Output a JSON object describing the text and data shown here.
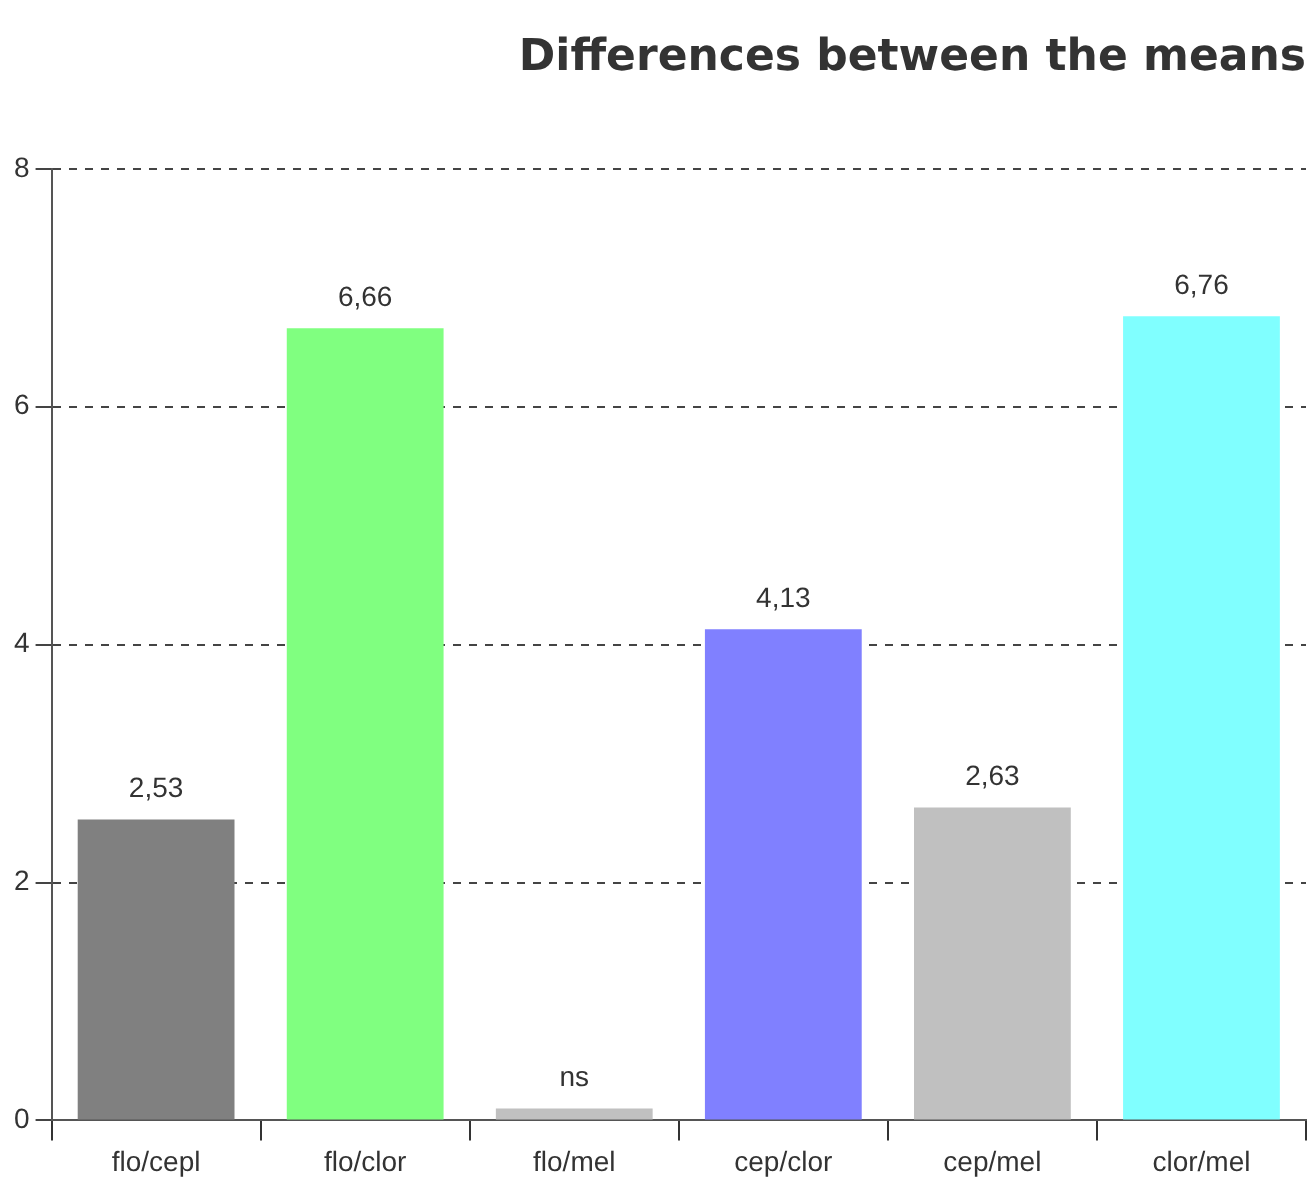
{
  "chart_data": {
    "type": "bar",
    "title": "Differences between the means",
    "categories": [
      "flo/cepl",
      "flo/clor",
      "flo/mel",
      "cep/clor",
      "cep/mel",
      "clor/mel"
    ],
    "values": [
      2.53,
      6.66,
      0.1,
      4.13,
      2.63,
      6.76
    ],
    "value_labels": [
      "2,53",
      "6,66",
      "ns",
      "4,13",
      "2,63",
      "6,76"
    ],
    "colors": [
      "#808080",
      "#80ff80",
      "#c0c0c0",
      "#8080ff",
      "#c0c0c0",
      "#80ffff"
    ],
    "ylim": [
      0,
      8
    ],
    "yticks": [
      0,
      2,
      4,
      6,
      8
    ],
    "grid": "y",
    "legend": false
  }
}
